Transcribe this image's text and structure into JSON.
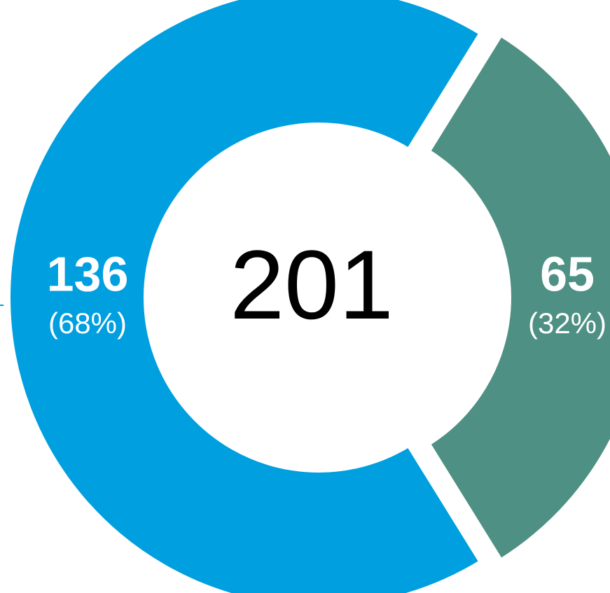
{
  "chart_data": {
    "type": "donut",
    "categories": [
      null,
      null
    ],
    "values": [
      136,
      65
    ],
    "percents": [
      68,
      32
    ],
    "percent_labels": [
      "(68%)",
      "(32%)"
    ],
    "colors": [
      "#009fe0",
      "#4e9084"
    ],
    "total": 201
  }
}
